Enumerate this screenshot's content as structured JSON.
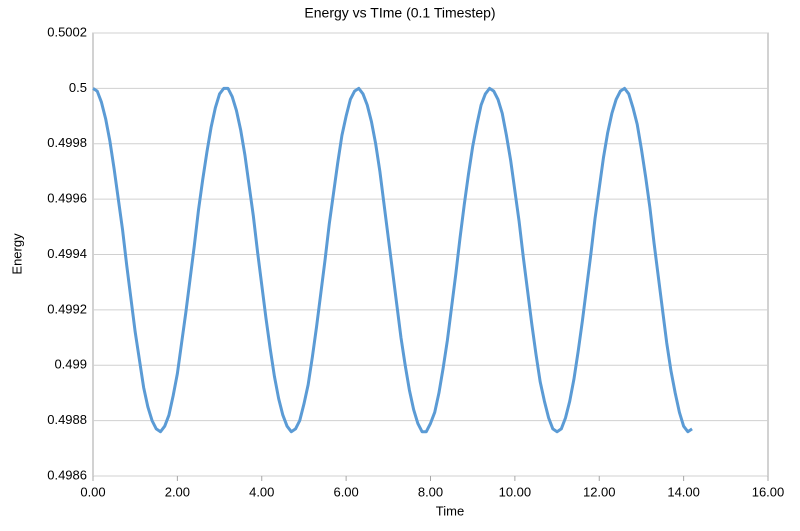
{
  "chart_data": {
    "type": "line",
    "title": "Energy vs TIme (0.1 Timestep)",
    "xlabel": "Time",
    "ylabel": "Energy",
    "color": "#5b9bd5",
    "xlim": [
      0,
      16
    ],
    "ylim": [
      0.4986,
      0.5002
    ],
    "xticks": [
      {
        "value": 0,
        "label": "0.00"
      },
      {
        "value": 2,
        "label": "2.00"
      },
      {
        "value": 4,
        "label": "4.00"
      },
      {
        "value": 6,
        "label": "6.00"
      },
      {
        "value": 8,
        "label": "8.00"
      },
      {
        "value": 10,
        "label": "10.00"
      },
      {
        "value": 12,
        "label": "12.00"
      },
      {
        "value": 14,
        "label": "14.00"
      },
      {
        "value": 16,
        "label": "16.00"
      }
    ],
    "yticks": [
      0.4986,
      0.4988,
      0.499,
      0.4992,
      0.4994,
      0.4996,
      0.4998,
      0.5,
      0.5002
    ],
    "grid": true,
    "x": [
      0,
      0.1,
      0.2,
      0.3,
      0.4,
      0.5,
      0.6,
      0.7,
      0.8,
      0.9,
      1,
      1.1,
      1.2,
      1.3,
      1.4,
      1.5,
      1.6,
      1.7,
      1.8,
      1.9,
      2,
      2.1,
      2.2,
      2.3,
      2.4,
      2.5,
      2.6,
      2.7,
      2.8,
      2.9,
      3,
      3.1,
      3.2,
      3.3,
      3.4,
      3.5,
      3.6,
      3.7,
      3.8,
      3.9,
      4,
      4.1,
      4.2,
      4.3,
      4.4,
      4.5,
      4.6,
      4.7,
      4.8,
      4.9,
      5,
      5.1,
      5.2,
      5.3,
      5.4,
      5.5,
      5.6,
      5.7,
      5.8,
      5.9,
      6,
      6.1,
      6.2,
      6.3,
      6.4,
      6.5,
      6.6,
      6.7,
      6.8,
      6.9,
      7,
      7.1,
      7.2,
      7.3,
      7.4,
      7.5,
      7.6,
      7.7,
      7.8,
      7.9,
      8,
      8.1,
      8.2,
      8.3,
      8.4,
      8.5,
      8.6,
      8.7,
      8.8,
      8.9,
      9,
      9.1,
      9.2,
      9.3,
      9.4,
      9.5,
      9.6,
      9.7,
      9.8,
      9.9,
      10,
      10.1,
      10.2,
      10.3,
      10.4,
      10.5,
      10.6,
      10.7,
      10.8,
      10.9,
      11,
      11.1,
      11.2,
      11.3,
      11.4,
      11.5,
      11.6,
      11.7,
      11.8,
      11.9,
      12,
      12.1,
      12.2,
      12.3,
      12.4,
      12.5,
      12.6,
      12.7,
      12.8,
      12.9,
      13,
      13.1,
      13.2,
      13.3,
      13.4,
      13.5,
      13.6,
      13.7,
      13.8,
      13.9,
      14,
      14.1,
      14.2
    ],
    "values": [
      0.5,
      0.49999,
      0.49995,
      0.49989,
      0.49981,
      0.49971,
      0.4996,
      0.49949,
      0.49936,
      0.49924,
      0.49912,
      0.49902,
      0.49892,
      0.49885,
      0.4988,
      0.49877,
      0.49876,
      0.49878,
      0.49882,
      0.49889,
      0.49897,
      0.49908,
      0.49919,
      0.49931,
      0.49943,
      0.49956,
      0.49967,
      0.49977,
      0.49986,
      0.49993,
      0.49998,
      0.5,
      0.5,
      0.49997,
      0.49992,
      0.49985,
      0.49976,
      0.49965,
      0.49954,
      0.49941,
      0.49929,
      0.49917,
      0.49906,
      0.49896,
      0.49888,
      0.49882,
      0.49878,
      0.49876,
      0.49877,
      0.4988,
      0.49886,
      0.49893,
      0.49903,
      0.49914,
      0.49926,
      0.49938,
      0.49951,
      0.49962,
      0.49973,
      0.49983,
      0.4999,
      0.49996,
      0.49999,
      0.5,
      0.49998,
      0.49994,
      0.49988,
      0.4998,
      0.4997,
      0.49958,
      0.49946,
      0.49934,
      0.49922,
      0.4991,
      0.499,
      0.49891,
      0.49884,
      0.49879,
      0.49876,
      0.49876,
      0.49879,
      0.49883,
      0.4989,
      0.49899,
      0.49909,
      0.49921,
      0.49933,
      0.49946,
      0.49958,
      0.49969,
      0.49979,
      0.49987,
      0.49994,
      0.49998,
      0.5,
      0.49999,
      0.49996,
      0.49991,
      0.49983,
      0.49974,
      0.49963,
      0.49952,
      0.49939,
      0.49927,
      0.49915,
      0.49904,
      0.49894,
      0.49887,
      0.49881,
      0.49877,
      0.49876,
      0.49877,
      0.49881,
      0.49887,
      0.49895,
      0.49905,
      0.49916,
      0.49928,
      0.4994,
      0.49953,
      0.49964,
      0.49975,
      0.49984,
      0.49991,
      0.49996,
      0.49999,
      0.5,
      0.49998,
      0.49993,
      0.49987,
      0.49978,
      0.49968,
      0.49957,
      0.49944,
      0.49932,
      0.4992,
      0.49908,
      0.49898,
      0.4989,
      0.49883,
      0.49878,
      0.49876,
      0.49877
    ]
  }
}
